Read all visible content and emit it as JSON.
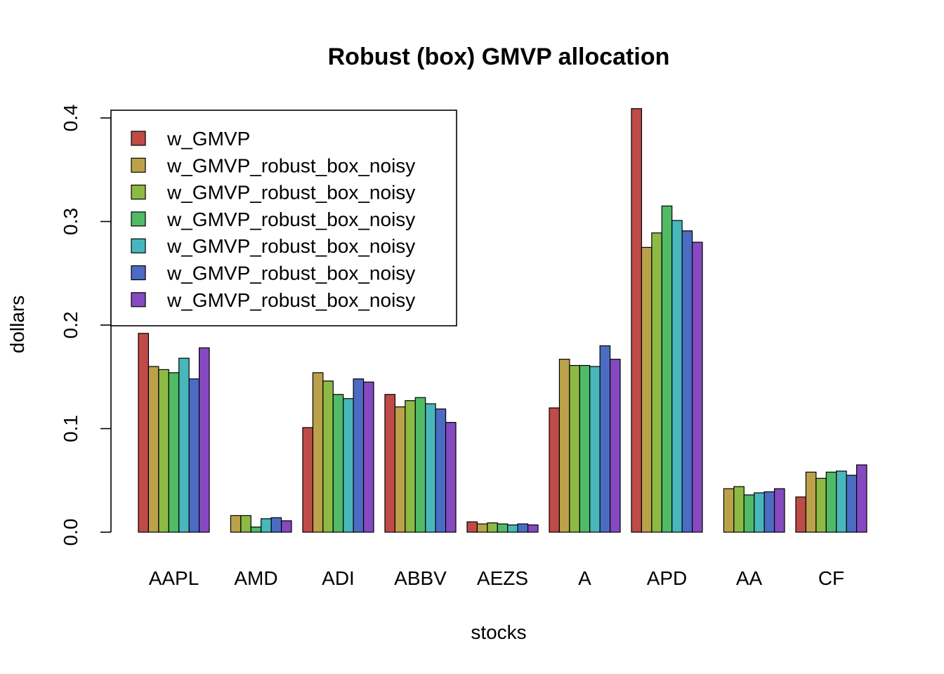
{
  "chart_data": {
    "type": "bar",
    "title": "Robust (box) GMVP allocation",
    "xlabel": "stocks",
    "ylabel": "dollars",
    "categories": [
      "AAPL",
      "AMD",
      "ADI",
      "ABBV",
      "AEZS",
      "A",
      "APD",
      "AA",
      "CF"
    ],
    "ylim": [
      0,
      0.4
    ],
    "yticks": [
      0.0,
      0.1,
      0.2,
      0.3,
      0.4
    ],
    "ytick_labels": [
      "0.0",
      "0.1",
      "0.2",
      "0.3",
      "0.4"
    ],
    "grid": false,
    "legend_position": "top-left",
    "series": [
      {
        "name": "w_GMVP",
        "color": "#BE4B48",
        "values": [
          0.192,
          0.0,
          0.101,
          0.133,
          0.01,
          0.12,
          0.409,
          0.0,
          0.034
        ]
      },
      {
        "name": "w_GMVP_robust_box_noisy",
        "color": "#BBA24A",
        "values": [
          0.16,
          0.016,
          0.154,
          0.121,
          0.008,
          0.167,
          0.275,
          0.042,
          0.058
        ]
      },
      {
        "name": "w_GMVP_robust_box_noisy",
        "color": "#8DBA45",
        "values": [
          0.157,
          0.016,
          0.146,
          0.127,
          0.009,
          0.161,
          0.289,
          0.044,
          0.052
        ]
      },
      {
        "name": "w_GMVP_robust_box_noisy",
        "color": "#50BA66",
        "values": [
          0.154,
          0.005,
          0.133,
          0.13,
          0.008,
          0.161,
          0.315,
          0.036,
          0.058
        ]
      },
      {
        "name": "w_GMVP_robust_box_noisy",
        "color": "#48B7BB",
        "values": [
          0.168,
          0.013,
          0.129,
          0.124,
          0.007,
          0.16,
          0.301,
          0.038,
          0.059
        ]
      },
      {
        "name": "w_GMVP_robust_box_noisy",
        "color": "#4C6CC3",
        "values": [
          0.148,
          0.014,
          0.148,
          0.119,
          0.008,
          0.18,
          0.291,
          0.039,
          0.055
        ]
      },
      {
        "name": "w_GMVP_robust_box_noisy",
        "color": "#8549C0",
        "values": [
          0.178,
          0.011,
          0.145,
          0.106,
          0.007,
          0.167,
          0.28,
          0.042,
          0.065
        ]
      }
    ]
  }
}
